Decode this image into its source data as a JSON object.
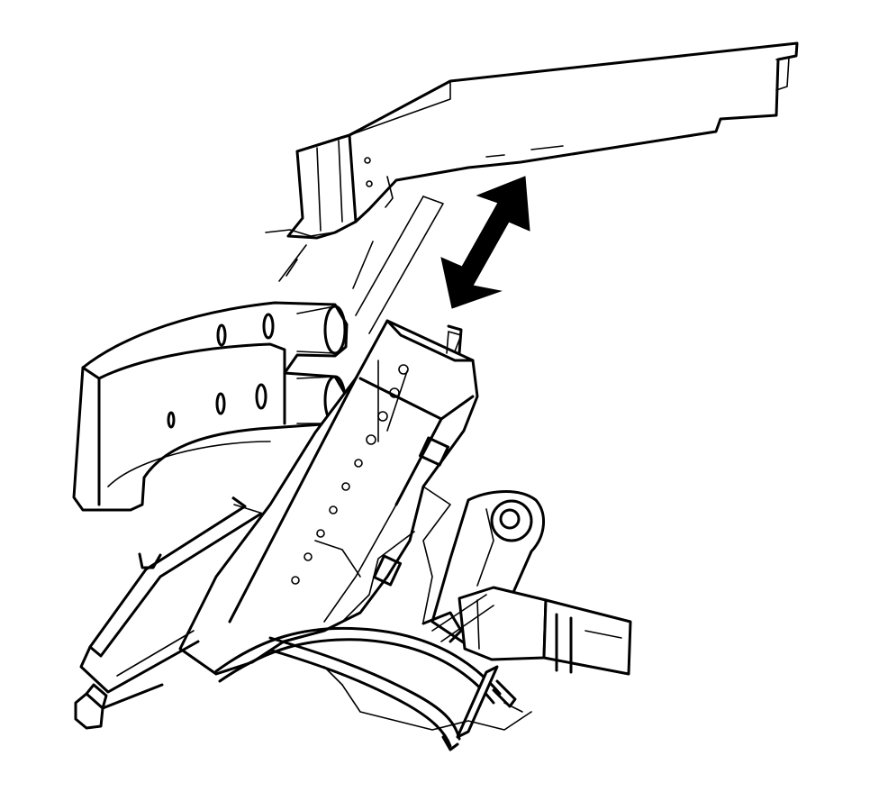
{
  "diagram": {
    "parts": [
      {
        "id": "heat-shield",
        "icon": "heat-shield-panel"
      },
      {
        "id": "motion-arrow",
        "icon": "double-headed-arrow"
      },
      {
        "id": "cover-bracket",
        "icon": "curved-bracket"
      },
      {
        "id": "control-module",
        "icon": "connector-module"
      },
      {
        "id": "mount-bushing",
        "icon": "bushing"
      },
      {
        "id": "sensor-plug",
        "icon": "electrical-connector"
      },
      {
        "id": "wiring-harness",
        "icon": "wire-harness"
      },
      {
        "id": "mount-stud",
        "icon": "stud-fastener"
      }
    ],
    "colors": {
      "line": "#000000",
      "background": "#ffffff"
    }
  }
}
